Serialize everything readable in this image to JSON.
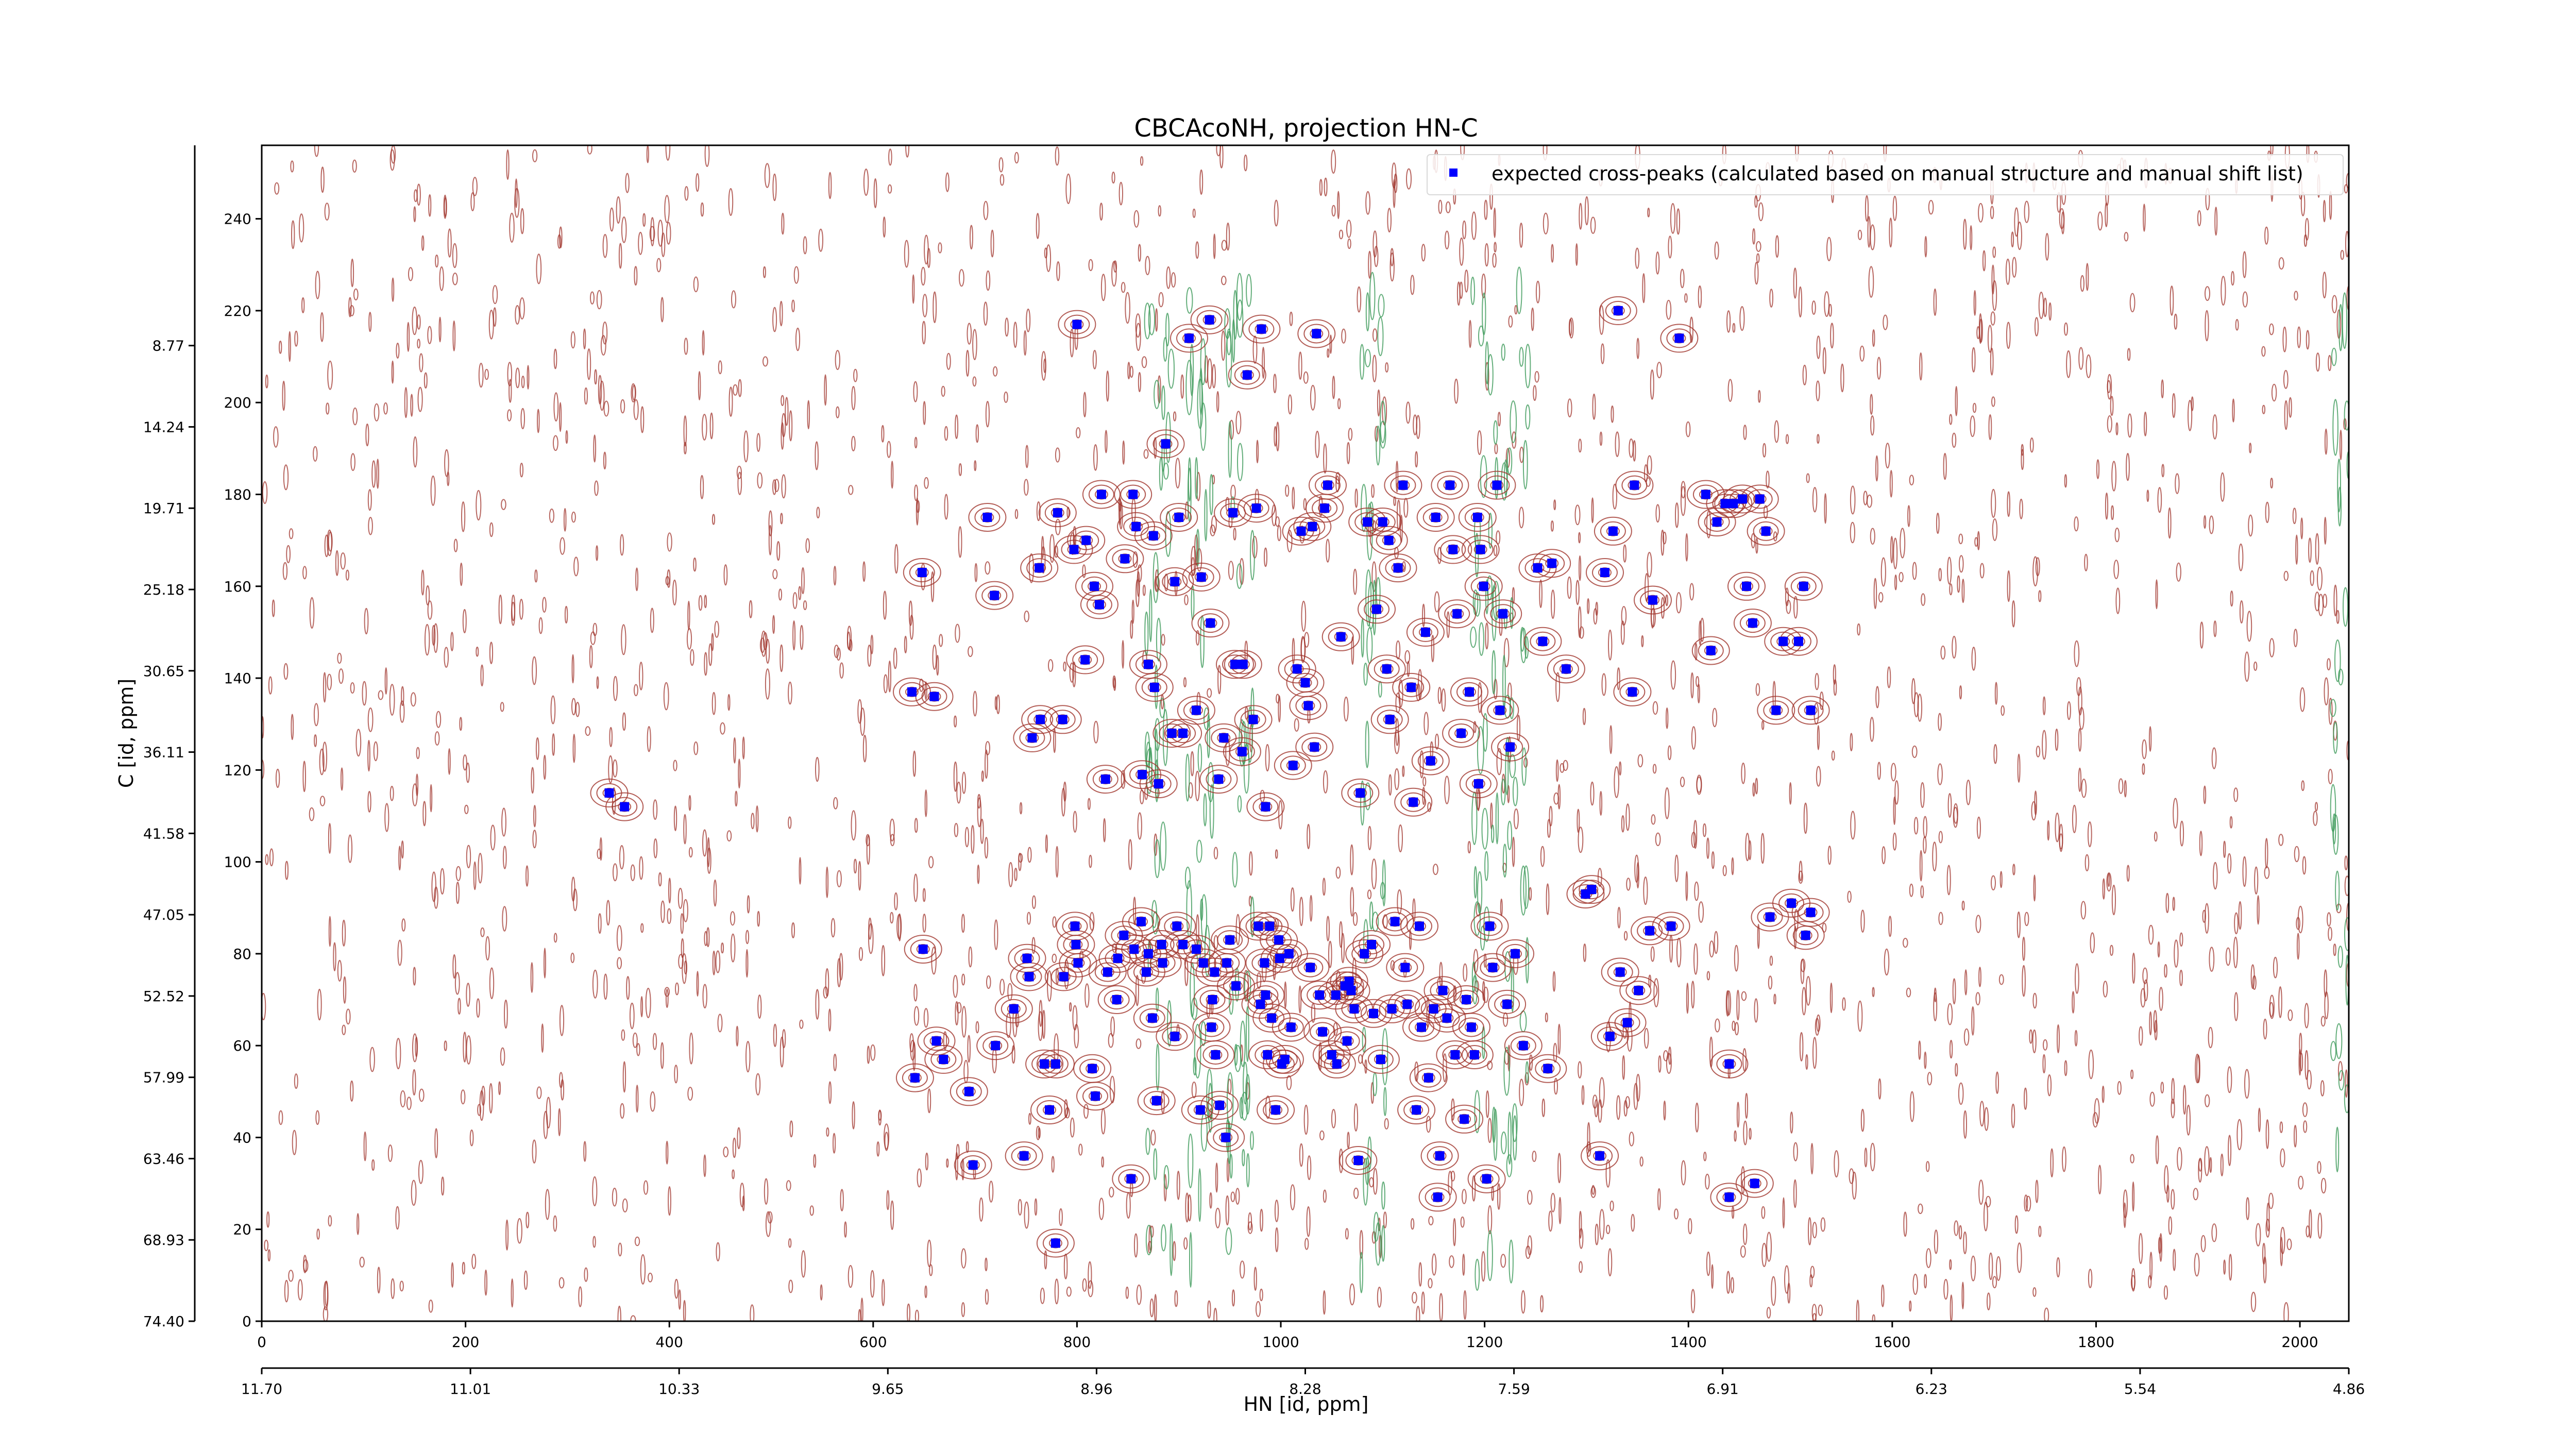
{
  "chart_data": {
    "type": "scatter",
    "title": "CBCAcoNH, projection HN-C",
    "xlabel": "HN [id, ppm]",
    "ylabel": "C [id, ppm]",
    "xlim": [
      0,
      2048
    ],
    "ylim": [
      0,
      256
    ],
    "x_ticks": [
      0,
      200,
      400,
      600,
      800,
      1000,
      1200,
      1400,
      1600,
      1800,
      2000
    ],
    "y_ticks": [
      0,
      20,
      40,
      60,
      80,
      100,
      120,
      140,
      160,
      180,
      200,
      220,
      240
    ],
    "x_ppm_tick_labels": [
      "11.70",
      "11.01",
      "10.33",
      "9.65",
      "8.96",
      "8.28",
      "7.59",
      "6.91",
      "6.23",
      "5.54",
      "4.86"
    ],
    "y_ppm_tick_labels": [
      "74.40",
      "68.93",
      "63.46",
      "57.99",
      "52.52",
      "47.05",
      "41.58",
      "36.11",
      "30.65",
      "25.18",
      "19.71",
      "14.24",
      "8.77"
    ],
    "legend": {
      "position": "top-right",
      "entries": [
        {
          "label": "expected cross-peaks (calculated based on manual structure and manual shift list)",
          "color": "#0000ff",
          "marker": "square"
        }
      ]
    },
    "colors": {
      "positive_contours": "#a0342c",
      "negative_contours": "#3d9a5a",
      "marker": "#0000ff"
    },
    "series": [
      {
        "name": "expected cross-peaks (calculated based on manual structure and manual shift list)",
        "points": [
          [
            341,
            115
          ],
          [
            356,
            112
          ],
          [
            638,
            137
          ],
          [
            648,
            163
          ],
          [
            649,
            81
          ],
          [
            641,
            53
          ],
          [
            660,
            136
          ],
          [
            662,
            61
          ],
          [
            669,
            57
          ],
          [
            694,
            50
          ],
          [
            698,
            34
          ],
          [
            712,
            175
          ],
          [
            719,
            158
          ],
          [
            720,
            60
          ],
          [
            738,
            68
          ],
          [
            748,
            36
          ],
          [
            751,
            79
          ],
          [
            753,
            75
          ],
          [
            756,
            127
          ],
          [
            764,
            131
          ],
          [
            763,
            164
          ],
          [
            768,
            56
          ],
          [
            773,
            46
          ],
          [
            779,
            56
          ],
          [
            779,
            17
          ],
          [
            781,
            176
          ],
          [
            786,
            131
          ],
          [
            787,
            75
          ],
          [
            797,
            168
          ],
          [
            798,
            86
          ],
          [
            799,
            82
          ],
          [
            800,
            217
          ],
          [
            801,
            78
          ],
          [
            808,
            144
          ],
          [
            809,
            170
          ],
          [
            815,
            55
          ],
          [
            817,
            160
          ],
          [
            818,
            49
          ],
          [
            822,
            156
          ],
          [
            824,
            180
          ],
          [
            828,
            118
          ],
          [
            830,
            76
          ],
          [
            839,
            70
          ],
          [
            840,
            79
          ],
          [
            846,
            84
          ],
          [
            847,
            166
          ],
          [
            853,
            31
          ],
          [
            855,
            180
          ],
          [
            856,
            81
          ],
          [
            858,
            173
          ],
          [
            863,
            87
          ],
          [
            864,
            119
          ],
          [
            868,
            76
          ],
          [
            870,
            143
          ],
          [
            870,
            80
          ],
          [
            874,
            66
          ],
          [
            875,
            171
          ],
          [
            876,
            138
          ],
          [
            878,
            48
          ],
          [
            880,
            117
          ],
          [
            883,
            82
          ],
          [
            884,
            78
          ],
          [
            887,
            191
          ],
          [
            893,
            128
          ],
          [
            896,
            161
          ],
          [
            896,
            62
          ],
          [
            898,
            86
          ],
          [
            900,
            175
          ],
          [
            904,
            82
          ],
          [
            904,
            128
          ],
          [
            910,
            214
          ],
          [
            917,
            81
          ],
          [
            917,
            133
          ],
          [
            921,
            46
          ],
          [
            922,
            162
          ],
          [
            924,
            78
          ],
          [
            930,
            218
          ],
          [
            931,
            152
          ],
          [
            932,
            64
          ],
          [
            933,
            70
          ],
          [
            935,
            76
          ],
          [
            936,
            58
          ],
          [
            939,
            118
          ],
          [
            940,
            47
          ],
          [
            944,
            127
          ],
          [
            946,
            40
          ],
          [
            947,
            78
          ],
          [
            950,
            83
          ],
          [
            953,
            176
          ],
          [
            955,
            143
          ],
          [
            956,
            73
          ],
          [
            962,
            124
          ],
          [
            963,
            143
          ],
          [
            967,
            206
          ],
          [
            973,
            131
          ],
          [
            976,
            177
          ],
          [
            978,
            86
          ],
          [
            980,
            69
          ],
          [
            981,
            216
          ],
          [
            984,
            78
          ],
          [
            985,
            71
          ],
          [
            985,
            112
          ],
          [
            987,
            58
          ],
          [
            989,
            86
          ],
          [
            991,
            66
          ],
          [
            995,
            46
          ],
          [
            998,
            83
          ],
          [
            999,
            79
          ],
          [
            1001,
            56
          ],
          [
            1004,
            57
          ],
          [
            1008,
            80
          ],
          [
            1010,
            64
          ],
          [
            1012,
            121
          ],
          [
            1016,
            142
          ],
          [
            1020,
            172
          ],
          [
            1024,
            139
          ],
          [
            1027,
            134
          ],
          [
            1029,
            77
          ],
          [
            1031,
            173
          ],
          [
            1033,
            125
          ],
          [
            1035,
            215
          ],
          [
            1038,
            71
          ],
          [
            1041,
            63
          ],
          [
            1043,
            177
          ],
          [
            1046,
            182
          ],
          [
            1050,
            58
          ],
          [
            1054,
            71
          ],
          [
            1055,
            56
          ],
          [
            1059,
            149
          ],
          [
            1063,
            73
          ],
          [
            1065,
            61
          ],
          [
            1067,
            74
          ],
          [
            1069,
            72
          ],
          [
            1072,
            68
          ],
          [
            1076,
            35
          ],
          [
            1078,
            115
          ],
          [
            1082,
            80
          ],
          [
            1085,
            174
          ],
          [
            1089,
            82
          ],
          [
            1091,
            67
          ],
          [
            1094,
            155
          ],
          [
            1098,
            57
          ],
          [
            1100,
            174
          ],
          [
            1104,
            142
          ],
          [
            1106,
            170
          ],
          [
            1107,
            131
          ],
          [
            1109,
            68
          ],
          [
            1112,
            87
          ],
          [
            1115,
            164
          ],
          [
            1120,
            182
          ],
          [
            1122,
            77
          ],
          [
            1124,
            69
          ],
          [
            1128,
            138
          ],
          [
            1130,
            113
          ],
          [
            1133,
            46
          ],
          [
            1136,
            86
          ],
          [
            1138,
            64
          ],
          [
            1142,
            150
          ],
          [
            1145,
            53
          ],
          [
            1147,
            122
          ],
          [
            1150,
            68
          ],
          [
            1152,
            175
          ],
          [
            1154,
            27
          ],
          [
            1156,
            36
          ],
          [
            1159,
            72
          ],
          [
            1163,
            66
          ],
          [
            1166,
            182
          ],
          [
            1169,
            168
          ],
          [
            1171,
            58
          ],
          [
            1173,
            154
          ],
          [
            1177,
            128
          ],
          [
            1180,
            44
          ],
          [
            1182,
            70
          ],
          [
            1185,
            137
          ],
          [
            1187,
            64
          ],
          [
            1190,
            58
          ],
          [
            1193,
            175
          ],
          [
            1194,
            117
          ],
          [
            1196,
            168
          ],
          [
            1199,
            160
          ],
          [
            1202,
            31
          ],
          [
            1205,
            86
          ],
          [
            1208,
            77
          ],
          [
            1212,
            182
          ],
          [
            1215,
            133
          ],
          [
            1218,
            154
          ],
          [
            1222,
            69
          ],
          [
            1225,
            125
          ],
          [
            1230,
            80
          ],
          [
            1238,
            60
          ],
          [
            1252,
            164
          ],
          [
            1257,
            148
          ],
          [
            1262,
            55
          ],
          [
            1266,
            165
          ],
          [
            1280,
            142
          ],
          [
            1299,
            93
          ],
          [
            1305,
            94
          ],
          [
            1313,
            36
          ],
          [
            1318,
            163
          ],
          [
            1323,
            62
          ],
          [
            1326,
            172
          ],
          [
            1331,
            220
          ],
          [
            1333,
            76
          ],
          [
            1340,
            65
          ],
          [
            1345,
            137
          ],
          [
            1347,
            182
          ],
          [
            1351,
            72
          ],
          [
            1362,
            85
          ],
          [
            1365,
            157
          ],
          [
            1383,
            86
          ],
          [
            1391,
            214
          ],
          [
            1417,
            180
          ],
          [
            1422,
            146
          ],
          [
            1428,
            174
          ],
          [
            1436,
            178
          ],
          [
            1444,
            178
          ],
          [
            1453,
            179
          ],
          [
            1457,
            160
          ],
          [
            1463,
            152
          ],
          [
            1470,
            179
          ],
          [
            1476,
            172
          ],
          [
            1480,
            88
          ],
          [
            1486,
            133
          ],
          [
            1493,
            148
          ],
          [
            1501,
            91
          ],
          [
            1508,
            148
          ],
          [
            1513,
            160
          ],
          [
            1515,
            84
          ],
          [
            1520,
            89
          ],
          [
            1440,
            56
          ],
          [
            1440,
            27
          ],
          [
            1520,
            133
          ],
          [
            1465,
            30
          ]
        ]
      }
    ]
  }
}
